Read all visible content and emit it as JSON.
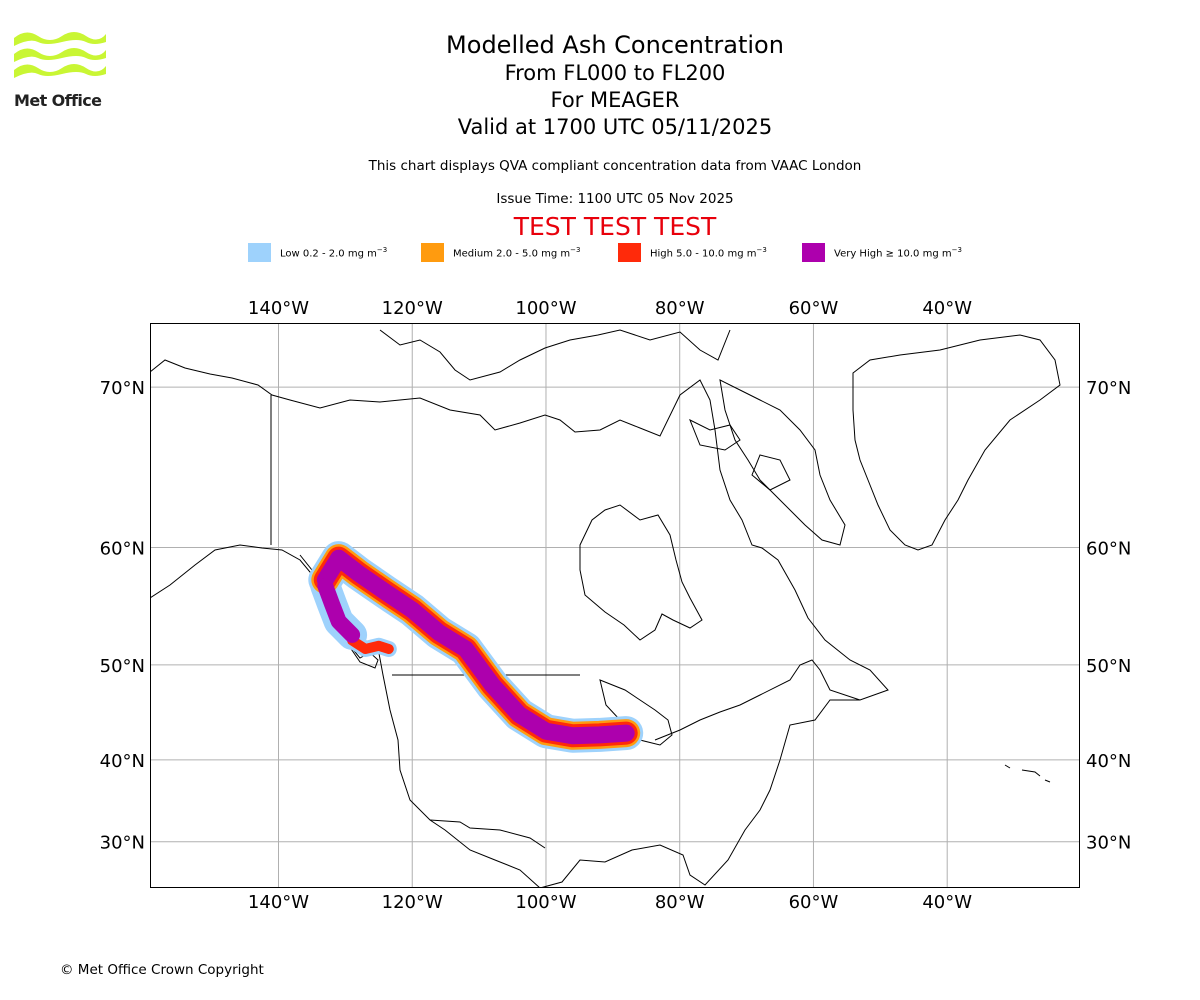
{
  "brand": {
    "name": "Met Office"
  },
  "title": {
    "main": "Modelled Ash Concentration",
    "levels": "From FL000 to FL200",
    "volcano": "For MEAGER",
    "valid": "Valid at 1700 UTC 05/11/2025"
  },
  "subtitle": {
    "compliance": "This chart displays QVA compliant concentration data from VAAC London",
    "issue": "Issue Time: 1100 UTC 05 Nov 2025"
  },
  "test_banner": {
    "text": "TEST TEST TEST",
    "color": "#e8000b"
  },
  "legend": [
    {
      "label": "Low 0.2 - 2.0 mg m",
      "unit_exp": "−3",
      "color": "#9ed2fc"
    },
    {
      "label": "Medium 2.0 - 5.0 mg m",
      "unit_exp": "−3",
      "color": "#ff9b0f"
    },
    {
      "label": "High 5.0 - 10.0 mg m",
      "unit_exp": "−3",
      "color": "#ff2a0a"
    },
    {
      "label": "Very High ≥ 10.0 mg m",
      "unit_exp": "−3",
      "color": "#ad00ad"
    }
  ],
  "map": {
    "lon_ticks": [
      {
        "value": -140,
        "label": "140°W"
      },
      {
        "value": -120,
        "label": "120°W"
      },
      {
        "value": -100,
        "label": "100°W"
      },
      {
        "value": -80,
        "label": "80°W"
      },
      {
        "value": -60,
        "label": "60°W"
      },
      {
        "value": -40,
        "label": "40°W"
      }
    ],
    "lat_ticks": [
      {
        "value": 70,
        "label": "70°N"
      },
      {
        "value": 60,
        "label": "60°N"
      },
      {
        "value": 50,
        "label": "50°N"
      },
      {
        "value": 40,
        "label": "40°N"
      },
      {
        "value": 30,
        "label": "30°N"
      }
    ],
    "plume_core": [
      [
        -133,
        57.5
      ],
      [
        -131,
        59.2
      ],
      [
        -128,
        58
      ],
      [
        -124,
        56.5
      ],
      [
        -120,
        55
      ],
      [
        -116,
        53
      ],
      [
        -112,
        51.5
      ],
      [
        -108,
        48
      ],
      [
        -104,
        45
      ],
      [
        -100,
        43.2
      ],
      [
        -96,
        42.7
      ],
      [
        -92,
        42.8
      ],
      [
        -88,
        43
      ]
    ],
    "plume_lobe": [
      [
        -133,
        57
      ],
      [
        -132,
        55.5
      ],
      [
        -131,
        54
      ],
      [
        -129,
        52.8
      ]
    ],
    "plume_south": [
      [
        -129,
        52.3
      ],
      [
        -127,
        51.5
      ],
      [
        -125,
        51.8
      ],
      [
        -123.5,
        51.5
      ]
    ]
  },
  "footer": {
    "copyright": "© Met Office Crown Copyright"
  }
}
